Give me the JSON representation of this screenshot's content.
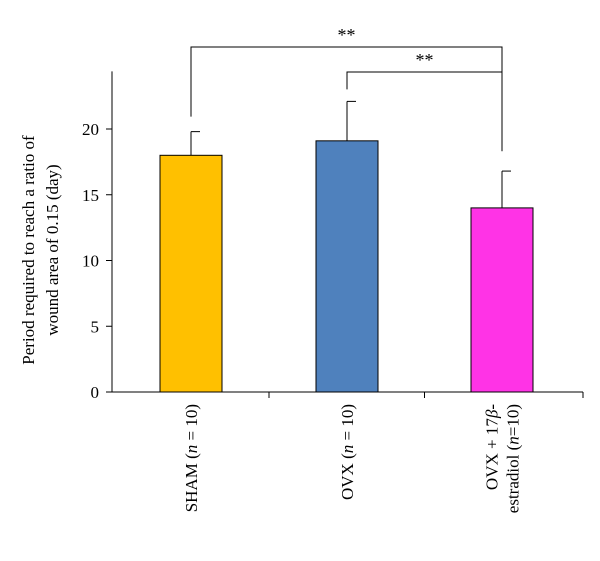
{
  "chart_data": {
    "type": "bar",
    "ylabel_lines": [
      "Period required to reach a ratio of",
      "wound area of 0.15 (day)"
    ],
    "ylim": [
      0,
      24
    ],
    "yticks": [
      0,
      5,
      10,
      15,
      20
    ],
    "grid": false,
    "legend": "none",
    "categories": [
      {
        "lines": [
          [
            {
              "t": "SHAM ("
            },
            {
              "t": "n",
              "i": true
            },
            {
              "t": " = 10)"
            }
          ]
        ]
      },
      {
        "lines": [
          [
            {
              "t": "OVX ("
            },
            {
              "t": "n",
              "i": true
            },
            {
              "t": " = 10)"
            }
          ]
        ]
      },
      {
        "lines": [
          [
            {
              "t": "OVX + 17"
            },
            {
              "t": "β",
              "i": true
            },
            {
              "t": "-"
            }
          ],
          [
            {
              "t": "estradiol ("
            },
            {
              "t": "n",
              "i": true
            },
            {
              "t": "=10)"
            }
          ]
        ]
      }
    ],
    "values": [
      18.0,
      19.1,
      14.0
    ],
    "errors": [
      1.8,
      3.0,
      2.8
    ],
    "colors": [
      "#FFC000",
      "#4F81BD",
      "#FF33E6"
    ],
    "significance": [
      {
        "from": 0,
        "to": 2,
        "label": "**"
      },
      {
        "from": 1,
        "to": 2,
        "label": "**"
      }
    ]
  }
}
